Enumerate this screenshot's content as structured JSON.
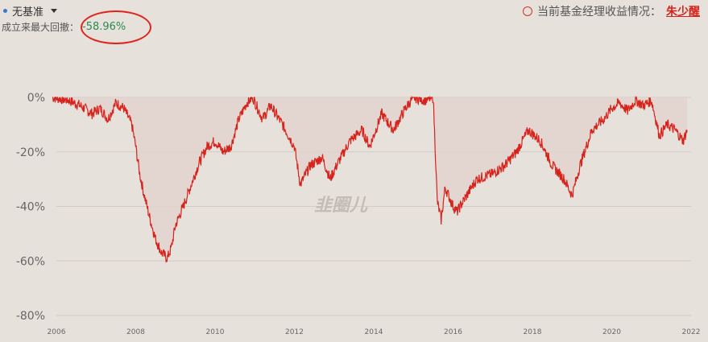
{
  "header": {
    "benchmark_label": "无基准",
    "max_drawdown_label": "成立来最大回撤：",
    "max_drawdown_value": "-58.96%",
    "manager_label": "当前基金经理收益情况：",
    "manager_name": "朱少醒"
  },
  "watermark": "韭圈儿",
  "colors": {
    "line": "#d6231c",
    "fill": "#e2d2cc",
    "drawdown_value": "#2c8a4f",
    "annotation": "#e0241b"
  },
  "chart_data": {
    "type": "area",
    "title": "",
    "xlabel": "",
    "ylabel": "",
    "xlim": [
      2006,
      2022
    ],
    "ylim": [
      -80,
      0
    ],
    "y_ticks": [
      "0%",
      "-20%",
      "-40%",
      "-60%",
      "-80%"
    ],
    "y_tick_values": [
      0,
      -20,
      -40,
      -60,
      -80
    ],
    "x_ticks": [
      "2006",
      "2008",
      "2010",
      "2012",
      "2014",
      "2016",
      "2018",
      "2020",
      "2022"
    ],
    "x_tick_values": [
      2006,
      2008,
      2010,
      2012,
      2014,
      2016,
      2018,
      2020,
      2022
    ],
    "grid": true,
    "series": [
      {
        "x": [
          2005.9,
          2006.3,
          2006.6,
          2006.9,
          2007.1,
          2007.3,
          2007.5,
          2007.7,
          2007.9,
          2008.0,
          2008.1,
          2008.2,
          2008.35,
          2008.5,
          2008.65,
          2008.8,
          2008.9,
          2009.0,
          2009.2,
          2009.4,
          2009.6,
          2009.8,
          2010.0,
          2010.2,
          2010.4,
          2010.6,
          2010.8,
          2010.95,
          2011.2,
          2011.4,
          2011.7,
          2012.0,
          2012.15,
          2012.4,
          2012.7,
          2012.9,
          2013.1,
          2013.4,
          2013.7,
          2013.9,
          2014.2,
          2014.5,
          2014.8,
          2015.0,
          2015.3,
          2015.5,
          2015.6,
          2015.7,
          2015.8,
          2016.0,
          2016.1,
          2016.3,
          2016.6,
          2017.0,
          2017.3,
          2017.6,
          2017.9,
          2018.2,
          2018.5,
          2018.8,
          2019.0,
          2019.2,
          2019.5,
          2019.8,
          2020.0,
          2020.2,
          2020.4,
          2020.6,
          2020.8,
          2021.0,
          2021.2,
          2021.4,
          2021.6,
          2021.8,
          2021.9
        ],
        "values": [
          0,
          -1,
          -3,
          -6,
          -4,
          -8,
          -2,
          -4,
          -10,
          -18,
          -28,
          -35,
          -44,
          -52,
          -57,
          -59,
          -55,
          -47,
          -40,
          -32,
          -24,
          -18,
          -16,
          -20,
          -18,
          -8,
          -2,
          0,
          -8,
          -3,
          -10,
          -18,
          -32,
          -25,
          -22,
          -30,
          -24,
          -16,
          -12,
          -18,
          -6,
          -12,
          -4,
          0,
          -1,
          0,
          -38,
          -45,
          -33,
          -40,
          -42,
          -37,
          -30,
          -28,
          -25,
          -20,
          -12,
          -16,
          -25,
          -30,
          -36,
          -25,
          -12,
          -8,
          -4,
          -2,
          -5,
          -1,
          -3,
          -1,
          -14,
          -10,
          -12,
          -16,
          -12
        ]
      }
    ]
  }
}
